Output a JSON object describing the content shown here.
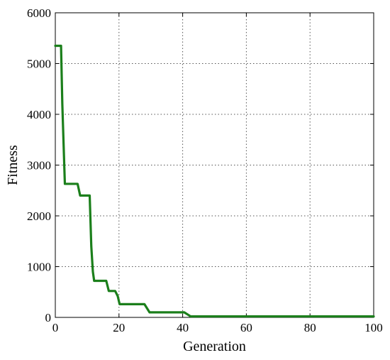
{
  "chart_data": {
    "type": "line",
    "title": "",
    "xlabel": "Generation",
    "ylabel": "Fitness",
    "xlim": [
      0,
      100
    ],
    "ylim": [
      0,
      6000
    ],
    "xticks": [
      0,
      20,
      40,
      60,
      80,
      100
    ],
    "yticks": [
      0,
      1000,
      2000,
      3000,
      4000,
      5000,
      6000
    ],
    "xtick_labels": [
      "0",
      "20",
      "40",
      "60",
      "80",
      "100"
    ],
    "ytick_labels": [
      "0",
      "1000",
      "2000",
      "3000",
      "4000",
      "5000",
      "6000"
    ],
    "grid": true,
    "series": [
      {
        "color": "#1b7f1b",
        "x": [
          0,
          1.8,
          2.2,
          3.0,
          7.0,
          7.8,
          10.8,
          11.3,
          11.8,
          12.2,
          16.0,
          16.8,
          18.8,
          19.6,
          20.2,
          28.0,
          29.6,
          40.5,
          41.5,
          42.5,
          100
        ],
        "y": [
          5350,
          5350,
          4200,
          2630,
          2630,
          2400,
          2400,
          1400,
          900,
          720,
          720,
          520,
          520,
          420,
          260,
          260,
          100,
          100,
          60,
          20,
          20
        ]
      }
    ]
  }
}
